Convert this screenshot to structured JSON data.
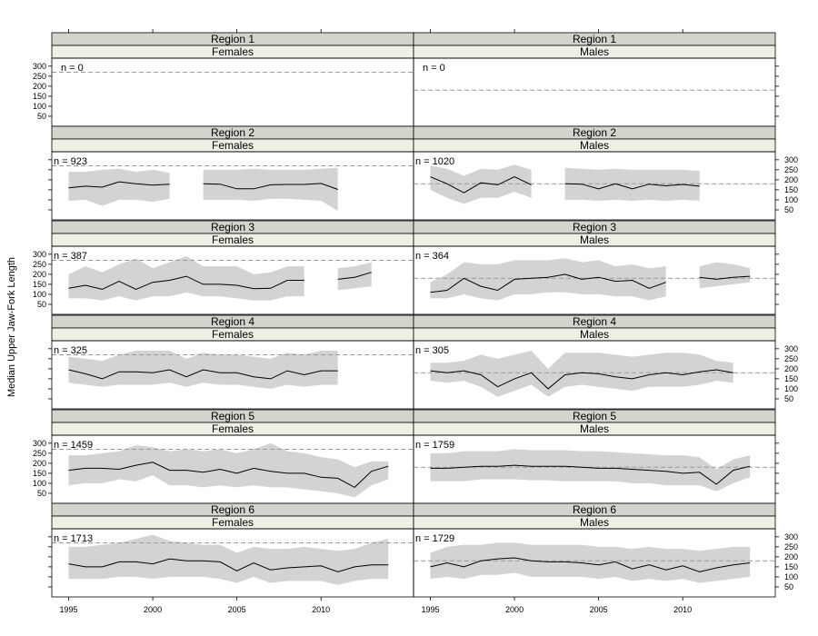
{
  "chart_data": {
    "type": "line",
    "ylabel": "Median Upper Jaw-Fork Length",
    "xlabel": "",
    "xlim": [
      1994,
      2015.5
    ],
    "ylim": [
      0,
      340
    ],
    "x_ticks": [
      1995,
      2000,
      2005,
      2010
    ],
    "y_ticks": [
      50,
      100,
      150,
      200,
      250,
      300
    ],
    "colors": {
      "ribbon": "#d3d3d3",
      "line": "#000000",
      "ref": "#9a9a9a",
      "strip_top": "#d4d4cc",
      "strip_bottom": "#efefe6"
    },
    "panels": [
      {
        "region": "Region 1",
        "sex": "Females",
        "n_label": "n = 0",
        "ref": 270,
        "segments": []
      },
      {
        "region": "Region 1",
        "sex": "Males",
        "n_label": "n = 0",
        "ref": 180,
        "segments": []
      },
      {
        "region": "Region 2",
        "sex": "Females",
        "n_label": "n = 923",
        "ref": 270,
        "segments": [
          {
            "x": [
              1995,
              1996,
              1997,
              1998,
              1999,
              2000,
              2001
            ],
            "y": [
              160,
              168,
              163,
              190,
              180,
              173,
              178
            ],
            "lo": [
              95,
              100,
              70,
              100,
              100,
              90,
              105
            ],
            "hi": [
              240,
              240,
              250,
              255,
              240,
              250,
              235
            ]
          },
          {
            "x": [
              2003,
              2004,
              2005,
              2006,
              2007,
              2008,
              2009,
              2010,
              2011
            ],
            "y": [
              180,
              178,
              155,
              155,
              175,
              177,
              177,
              182,
              152
            ],
            "lo": [
              100,
              100,
              100,
              95,
              105,
              105,
              100,
              95,
              45
            ],
            "hi": [
              250,
              250,
              250,
              255,
              250,
              250,
              250,
              255,
              260
            ]
          }
        ]
      },
      {
        "region": "Region 2",
        "sex": "Males",
        "n_label": "n = 1020",
        "ref": 180,
        "segments": [
          {
            "x": [
              1995,
              1996,
              1997,
              1998,
              1999,
              2000,
              2001
            ],
            "y": [
              215,
              180,
              135,
              185,
              175,
              215,
              175
            ],
            "lo": [
              150,
              110,
              80,
              110,
              110,
              140,
              110
            ],
            "hi": [
              270,
              255,
              220,
              255,
              250,
              275,
              250
            ]
          },
          {
            "x": [
              2003,
              2004,
              2005,
              2006,
              2007,
              2008,
              2009,
              2010,
              2011
            ],
            "y": [
              180,
              178,
              155,
              180,
              155,
              178,
              170,
              177,
              168
            ],
            "lo": [
              100,
              100,
              95,
              100,
              95,
              100,
              95,
              100,
              95
            ],
            "hi": [
              260,
              255,
              250,
              255,
              250,
              250,
              250,
              250,
              245
            ]
          }
        ]
      },
      {
        "region": "Region 3",
        "sex": "Females",
        "n_label": "n = 387",
        "ref": 270,
        "segments": [
          {
            "x": [
              1995,
              1996,
              1997,
              1998,
              1999,
              2000,
              2001,
              2002,
              2003,
              2004,
              2005,
              2006,
              2007,
              2008,
              2009
            ],
            "y": [
              130,
              145,
              125,
              165,
              125,
              160,
              170,
              190,
              150,
              150,
              145,
              128,
              130,
              170,
              170
            ],
            "lo": [
              80,
              80,
              70,
              90,
              70,
              90,
              90,
              110,
              90,
              90,
              80,
              70,
              70,
              90,
              90
            ],
            "hi": [
              200,
              240,
              210,
              250,
              280,
              230,
              260,
              290,
              240,
              240,
              240,
              200,
              210,
              240,
              240
            ]
          },
          {
            "x": [
              2011,
              2012,
              2013
            ],
            "y": [
              175,
              185,
              210
            ],
            "lo": [
              120,
              130,
              140
            ],
            "hi": [
              230,
              240,
              260
            ]
          }
        ]
      },
      {
        "region": "Region 3",
        "sex": "Males",
        "n_label": "n = 364",
        "ref": 180,
        "segments": [
          {
            "x": [
              1995,
              1996,
              1997,
              1998,
              1999,
              2000,
              2001,
              2002,
              2003,
              2004,
              2005,
              2006,
              2007,
              2008,
              2009
            ],
            "y": [
              110,
              120,
              180,
              140,
              120,
              175,
              180,
              185,
              200,
              175,
              185,
              165,
              170,
              130,
              160
            ],
            "lo": [
              80,
              80,
              100,
              80,
              70,
              100,
              100,
              110,
              110,
              100,
              100,
              90,
              90,
              70,
              90
            ],
            "hi": [
              160,
              200,
              260,
              250,
              250,
              270,
              270,
              270,
              280,
              260,
              270,
              240,
              250,
              230,
              240
            ]
          },
          {
            "x": [
              2011,
              2012,
              2013,
              2014
            ],
            "y": [
              185,
              175,
              185,
              190
            ],
            "lo": [
              130,
              140,
              150,
              160
            ],
            "hi": [
              240,
              260,
              250,
              230
            ]
          }
        ]
      },
      {
        "region": "Region 4",
        "sex": "Females",
        "n_label": "n = 325",
        "ref": 270,
        "segments": [
          {
            "x": [
              1995,
              1996,
              1997,
              1998,
              1999,
              2000,
              2001,
              2002,
              2003,
              2004,
              2005,
              2006,
              2007,
              2008,
              2009,
              2010,
              2011
            ],
            "y": [
              195,
              175,
              150,
              185,
              185,
              180,
              195,
              160,
              195,
              180,
              180,
              160,
              150,
              190,
              170,
              190,
              190
            ],
            "lo": [
              130,
              120,
              110,
              120,
              120,
              120,
              130,
              110,
              130,
              120,
              120,
              110,
              100,
              120,
              110,
              120,
              120
            ],
            "hi": [
              260,
              250,
              240,
              270,
              290,
              290,
              290,
              250,
              280,
              270,
              270,
              260,
              250,
              280,
              270,
              290,
              290
            ]
          }
        ]
      },
      {
        "region": "Region 4",
        "sex": "Males",
        "n_label": "n = 305",
        "ref": 180,
        "segments": [
          {
            "x": [
              1995,
              1996,
              1997,
              1998,
              1999,
              2000,
              2001,
              2002,
              2003,
              2004,
              2005,
              2006,
              2007,
              2008,
              2009,
              2010,
              2011,
              2012,
              2013
            ],
            "y": [
              190,
              180,
              190,
              170,
              110,
              150,
              180,
              100,
              170,
              180,
              175,
              160,
              150,
              170,
              180,
              170,
              185,
              195,
              180
            ],
            "lo": [
              140,
              130,
              140,
              110,
              60,
              90,
              120,
              60,
              110,
              120,
              110,
              100,
              90,
              110,
              110,
              110,
              120,
              140,
              130
            ],
            "hi": [
              230,
              230,
              240,
              270,
              250,
              270,
              290,
              200,
              280,
              280,
              280,
              270,
              260,
              270,
              280,
              280,
              270,
              240,
              230
            ]
          }
        ]
      },
      {
        "region": "Region 5",
        "sex": "Females",
        "n_label": "n = 1459",
        "ref": 270,
        "segments": [
          {
            "x": [
              1995,
              1996,
              1997,
              1998,
              1999,
              2000,
              2001,
              2002,
              2003,
              2004,
              2005,
              2006,
              2007,
              2008,
              2009,
              2010,
              2011,
              2012,
              2013,
              2014
            ],
            "y": [
              165,
              175,
              175,
              170,
              190,
              205,
              165,
              165,
              155,
              170,
              150,
              175,
              160,
              150,
              150,
              130,
              125,
              80,
              160,
              185
            ],
            "lo": [
              90,
              100,
              100,
              120,
              110,
              140,
              90,
              90,
              80,
              90,
              80,
              90,
              80,
              80,
              70,
              60,
              50,
              30,
              90,
              120
            ],
            "hi": [
              240,
              240,
              250,
              260,
              290,
              280,
              260,
              270,
              260,
              270,
              250,
              270,
              300,
              260,
              250,
              230,
              220,
              180,
              210,
              210
            ]
          }
        ]
      },
      {
        "region": "Region 5",
        "sex": "Males",
        "n_label": "n = 1759",
        "ref": 180,
        "segments": [
          {
            "x": [
              1995,
              1996,
              1997,
              1998,
              1999,
              2000,
              2001,
              2002,
              2003,
              2004,
              2005,
              2006,
              2007,
              2008,
              2009,
              2010,
              2011,
              2012,
              2013,
              2014
            ],
            "y": [
              175,
              175,
              180,
              185,
              185,
              190,
              185,
              185,
              185,
              180,
              175,
              175,
              170,
              165,
              160,
              150,
              155,
              95,
              165,
              185
            ],
            "lo": [
              110,
              110,
              110,
              120,
              120,
              120,
              115,
              115,
              110,
              110,
              110,
              110,
              100,
              100,
              90,
              90,
              90,
              60,
              100,
              130
            ],
            "hi": [
              250,
              250,
              260,
              260,
              260,
              270,
              265,
              265,
              265,
              260,
              260,
              255,
              250,
              245,
              240,
              240,
              230,
              170,
              220,
              240
            ]
          }
        ]
      },
      {
        "region": "Region 6",
        "sex": "Females",
        "n_label": "n = 1713",
        "ref": 270,
        "segments": [
          {
            "x": [
              1995,
              1996,
              1997,
              1998,
              1999,
              2000,
              2001,
              2002,
              2003,
              2004,
              2005,
              2006,
              2007,
              2008,
              2009,
              2010,
              2011,
              2012,
              2013,
              2014
            ],
            "y": [
              165,
              150,
              150,
              175,
              175,
              165,
              190,
              180,
              180,
              175,
              130,
              170,
              135,
              145,
              150,
              155,
              125,
              150,
              160,
              160
            ],
            "lo": [
              90,
              90,
              90,
              100,
              100,
              90,
              100,
              100,
              100,
              90,
              70,
              100,
              70,
              80,
              80,
              80,
              60,
              80,
              90,
              90
            ],
            "hi": [
              250,
              250,
              260,
              270,
              290,
              310,
              280,
              270,
              260,
              260,
              220,
              250,
              240,
              240,
              250,
              240,
              230,
              240,
              270,
              290
            ]
          }
        ]
      },
      {
        "region": "Region 6",
        "sex": "Males",
        "n_label": "n = 1729",
        "ref": 180,
        "segments": [
          {
            "x": [
              1995,
              1996,
              1997,
              1998,
              1999,
              2000,
              2001,
              2002,
              2003,
              2004,
              2005,
              2006,
              2007,
              2008,
              2009,
              2010,
              2011,
              2012,
              2013,
              2014
            ],
            "y": [
              150,
              170,
              150,
              180,
              190,
              195,
              180,
              175,
              175,
              170,
              160,
              175,
              140,
              160,
              135,
              155,
              125,
              145,
              160,
              170
            ],
            "lo": [
              90,
              100,
              90,
              110,
              110,
              120,
              100,
              100,
              100,
              100,
              90,
              100,
              80,
              90,
              80,
              90,
              70,
              80,
              90,
              100
            ],
            "hi": [
              220,
              250,
              260,
              260,
              270,
              270,
              260,
              260,
              260,
              260,
              250,
              250,
              240,
              250,
              240,
              240,
              230,
              240,
              250,
              250
            ]
          }
        ]
      }
    ]
  }
}
